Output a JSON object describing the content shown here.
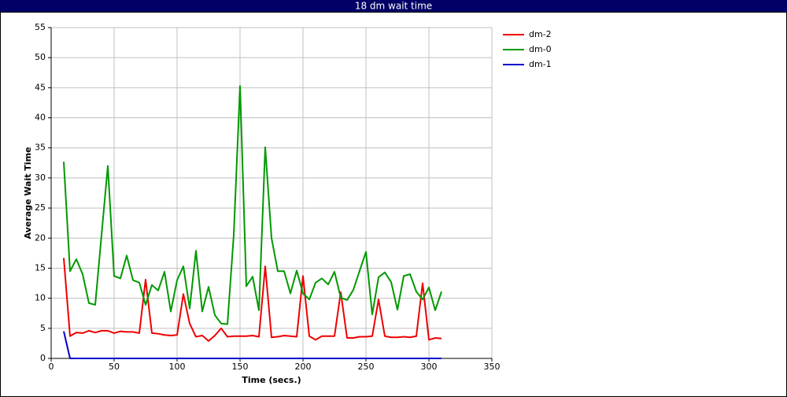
{
  "chart_data": {
    "type": "line",
    "title": "18 dm wait time",
    "xlabel": "Time (secs.)",
    "ylabel": "Average Wait Time",
    "x": [
      10,
      15,
      20,
      25,
      30,
      35,
      40,
      45,
      50,
      55,
      60,
      65,
      70,
      75,
      80,
      85,
      90,
      95,
      100,
      105,
      110,
      115,
      120,
      125,
      130,
      135,
      140,
      145,
      150,
      155,
      160,
      165,
      170,
      175,
      180,
      185,
      190,
      195,
      200,
      205,
      210,
      215,
      220,
      225,
      230,
      235,
      240,
      245,
      250,
      255,
      260,
      265,
      270,
      275,
      280,
      285,
      290,
      295,
      300,
      305,
      310
    ],
    "series": [
      {
        "name": "dm-2",
        "color": "#ee0000",
        "values": [
          16.7,
          3.7,
          4.3,
          4.2,
          4.6,
          4.3,
          4.6,
          4.6,
          4.2,
          4.5,
          4.4,
          4.4,
          4.2,
          13.1,
          4.2,
          4.1,
          3.9,
          3.8,
          3.9,
          10.7,
          5.8,
          3.6,
          3.8,
          2.9,
          3.8,
          5,
          3.6,
          3.7,
          3.7,
          3.7,
          3.8,
          3.6,
          15.3,
          3.5,
          3.6,
          3.8,
          3.7,
          3.6,
          13.7,
          3.7,
          3.1,
          3.7,
          3.7,
          3.7,
          11,
          3.4,
          3.4,
          3.6,
          3.6,
          3.7,
          9.8,
          3.7,
          3.5,
          3.5,
          3.6,
          3.5,
          3.7,
          12.5,
          3.1,
          3.4,
          3.3
        ]
      },
      {
        "name": "dm-0",
        "color": "#009900",
        "values": [
          32.7,
          14.5,
          16.5,
          14,
          9.2,
          8.9,
          20.5,
          32,
          13.7,
          13.3,
          17.1,
          13,
          12.6,
          8.9,
          12.2,
          11.3,
          14.4,
          7.8,
          13,
          15.3,
          8.3,
          17.9,
          7.8,
          11.9,
          7.2,
          5.8,
          5.7,
          20.5,
          45.3,
          12,
          13.6,
          8,
          35.1,
          20,
          14.5,
          14.5,
          10.8,
          14.6,
          10.8,
          9.8,
          12.6,
          13.3,
          12.3,
          14.4,
          10.1,
          9.7,
          11.4,
          14.6,
          17.7,
          7.3,
          13.5,
          14.3,
          12.7,
          8.1,
          13.7,
          14,
          11.1,
          9.8,
          11.8,
          8,
          11.1
        ]
      },
      {
        "name": "dm-1",
        "color": "#0000cc",
        "values": [
          4.5,
          0,
          0,
          0,
          0,
          0,
          0,
          0,
          0,
          0,
          0,
          0,
          0,
          0,
          0,
          0,
          0,
          0,
          0,
          0,
          0,
          0,
          0,
          0,
          0,
          0,
          0,
          0,
          0,
          0,
          0,
          0,
          0,
          0,
          0,
          0,
          0,
          0,
          0,
          0,
          0,
          0,
          0,
          0,
          0,
          0,
          0,
          0,
          0,
          0,
          0,
          0,
          0,
          0,
          0,
          0,
          0,
          0,
          0,
          0,
          0
        ]
      }
    ],
    "xlim": [
      0,
      350
    ],
    "xticks": [
      0,
      50,
      100,
      150,
      200,
      250,
      300,
      350
    ],
    "ylim": [
      0,
      55
    ],
    "yticks": [
      0,
      5,
      10,
      15,
      20,
      25,
      30,
      35,
      40,
      45,
      50,
      55
    ],
    "grid": true
  }
}
